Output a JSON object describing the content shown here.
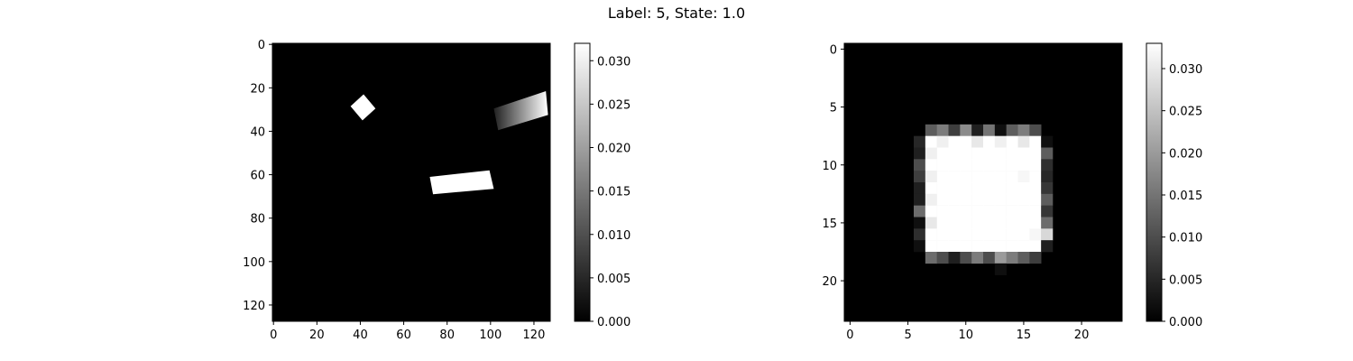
{
  "figure_title": "Label: 5, State: 1.0",
  "chart_data": [
    {
      "type": "heatmap",
      "title": "",
      "xlabel": "",
      "ylabel": "",
      "size": 128,
      "xlim": [
        0,
        128
      ],
      "ylim": [
        128,
        0
      ],
      "x_ticks": [
        0,
        20,
        40,
        60,
        80,
        100,
        120
      ],
      "y_ticks": [
        0,
        20,
        40,
        60,
        80,
        100,
        120
      ],
      "colormap": "gray",
      "background_value": 0.0,
      "colorbar": {
        "min": 0.0,
        "max": 0.032,
        "ticks": [
          "0.000",
          "0.005",
          "0.010",
          "0.015",
          "0.020",
          "0.025",
          "0.030"
        ]
      },
      "shapes": [
        {
          "name": "small-square",
          "kind": "polygon",
          "value": 0.032,
          "points": [
            [
              36,
              29
            ],
            [
              42,
              23.5
            ],
            [
              47.5,
              30
            ],
            [
              41.5,
              35.5
            ]
          ]
        },
        {
          "name": "wide-bar",
          "kind": "polygon",
          "value": 0.032,
          "points": [
            [
              72.5,
              61.5
            ],
            [
              100,
              58.5
            ],
            [
              102,
              67
            ],
            [
              74,
              69.5
            ]
          ]
        },
        {
          "name": "gradient-bar",
          "kind": "polygon",
          "value": 0.022,
          "gradient": [
            0.004,
            0.032
          ],
          "points": [
            [
              102,
              30
            ],
            [
              126,
              22
            ],
            [
              127,
              33
            ],
            [
              104,
              40
            ]
          ]
        }
      ]
    },
    {
      "type": "heatmap",
      "title": "",
      "xlabel": "",
      "ylabel": "",
      "size": 24,
      "xlim": [
        0,
        24
      ],
      "ylim": [
        24,
        0
      ],
      "x_ticks": [
        0,
        5,
        10,
        15,
        20
      ],
      "y_ticks": [
        0,
        5,
        10,
        15,
        20
      ],
      "colormap": "gray",
      "colorbar": {
        "min": 0.0,
        "max": 0.033,
        "ticks": [
          "0.000",
          "0.005",
          "0.010",
          "0.015",
          "0.020",
          "0.025",
          "0.030"
        ]
      },
      "grid_values": [
        [
          0,
          0,
          0,
          0,
          0,
          0,
          0,
          0,
          0,
          0,
          0,
          0,
          0,
          0,
          0,
          0,
          0,
          0,
          0,
          0,
          0,
          0,
          0,
          0
        ],
        [
          0,
          0,
          0,
          0,
          0,
          0,
          0,
          0,
          0,
          0,
          0,
          0,
          0,
          0,
          0,
          0,
          0,
          0,
          0,
          0,
          0,
          0,
          0,
          0
        ],
        [
          0,
          0,
          0,
          0,
          0,
          0,
          0,
          0,
          0,
          0,
          0,
          0,
          0,
          0,
          0,
          0,
          0,
          0,
          0,
          0,
          0,
          0,
          0,
          0
        ],
        [
          0,
          0,
          0,
          0,
          0,
          0,
          0,
          0,
          0,
          0,
          0,
          0,
          0,
          0,
          0,
          0,
          0,
          0,
          0,
          0,
          0,
          0,
          0,
          0
        ],
        [
          0,
          0,
          0,
          0,
          0,
          0,
          0,
          0,
          0,
          0,
          0,
          0,
          0,
          0,
          0,
          0,
          0,
          0,
          0,
          0,
          0,
          0,
          0,
          0
        ],
        [
          0,
          0,
          0,
          0,
          0,
          0,
          0,
          0,
          0,
          0,
          0,
          0,
          0,
          0,
          0,
          0,
          0,
          0,
          0,
          0,
          0,
          0,
          0,
          0
        ],
        [
          0,
          0,
          0,
          0,
          0,
          0,
          0,
          0,
          0,
          0,
          0,
          0,
          0,
          0,
          0,
          0,
          0,
          0,
          0,
          0,
          0,
          0,
          0,
          0
        ],
        [
          0,
          0,
          0,
          0,
          0,
          0,
          0,
          0.012,
          0.016,
          0.008,
          0.018,
          0.004,
          0.015,
          0.002,
          0.012,
          0.016,
          0.01,
          0,
          0,
          0,
          0,
          0,
          0,
          0
        ],
        [
          0,
          0,
          0,
          0,
          0,
          0,
          0.005,
          0.033,
          0.031,
          0.033,
          0.033,
          0.03,
          0.033,
          0.031,
          0.033,
          0.03,
          0.033,
          0.002,
          0,
          0,
          0,
          0,
          0,
          0
        ],
        [
          0,
          0,
          0,
          0,
          0,
          0,
          0.004,
          0.031,
          0.033,
          0.033,
          0.033,
          0.033,
          0.033,
          0.033,
          0.033,
          0.033,
          0.033,
          0.012,
          0,
          0,
          0,
          0,
          0,
          0
        ],
        [
          0,
          0,
          0,
          0,
          0,
          0,
          0.01,
          0.033,
          0.033,
          0.033,
          0.033,
          0.033,
          0.033,
          0.033,
          0.033,
          0.033,
          0.033,
          0.006,
          0,
          0,
          0,
          0,
          0,
          0
        ],
        [
          0,
          0,
          0,
          0,
          0,
          0,
          0.008,
          0.031,
          0.033,
          0.033,
          0.033,
          0.033,
          0.033,
          0.033,
          0.033,
          0.032,
          0.033,
          0.005,
          0,
          0,
          0,
          0,
          0,
          0
        ],
        [
          0,
          0,
          0,
          0,
          0,
          0,
          0.004,
          0.033,
          0.033,
          0.033,
          0.033,
          0.033,
          0.033,
          0.033,
          0.033,
          0.033,
          0.033,
          0.007,
          0,
          0,
          0,
          0,
          0,
          0
        ],
        [
          0,
          0,
          0,
          0,
          0,
          0,
          0.004,
          0.031,
          0.033,
          0.033,
          0.033,
          0.033,
          0.033,
          0.033,
          0.033,
          0.033,
          0.033,
          0.012,
          0,
          0,
          0,
          0,
          0,
          0
        ],
        [
          0,
          0,
          0,
          0,
          0,
          0,
          0.014,
          0.033,
          0.033,
          0.033,
          0.033,
          0.033,
          0.033,
          0.033,
          0.033,
          0.033,
          0.033,
          0.007,
          0,
          0,
          0,
          0,
          0,
          0
        ],
        [
          0,
          0,
          0,
          0,
          0,
          0,
          0.002,
          0.03,
          0.033,
          0.033,
          0.033,
          0.033,
          0.033,
          0.033,
          0.033,
          0.033,
          0.033,
          0.014,
          0,
          0,
          0,
          0,
          0,
          0
        ],
        [
          0,
          0,
          0,
          0,
          0,
          0,
          0.006,
          0.033,
          0.033,
          0.033,
          0.033,
          0.033,
          0.033,
          0.033,
          0.033,
          0.033,
          0.032,
          0.028,
          0,
          0,
          0,
          0,
          0,
          0
        ],
        [
          0,
          0,
          0,
          0,
          0,
          0,
          0.002,
          0.033,
          0.033,
          0.033,
          0.033,
          0.033,
          0.033,
          0.033,
          0.033,
          0.033,
          0.033,
          0.004,
          0,
          0,
          0,
          0,
          0,
          0
        ],
        [
          0,
          0,
          0,
          0,
          0,
          0,
          0,
          0.014,
          0.01,
          0.004,
          0.01,
          0.016,
          0.01,
          0.02,
          0.016,
          0.012,
          0.008,
          0,
          0,
          0,
          0,
          0,
          0,
          0
        ],
        [
          0,
          0,
          0,
          0,
          0,
          0,
          0,
          0,
          0,
          0,
          0,
          0,
          0,
          0.002,
          0,
          0,
          0,
          0,
          0,
          0,
          0,
          0,
          0,
          0
        ],
        [
          0,
          0,
          0,
          0,
          0,
          0,
          0,
          0,
          0,
          0,
          0,
          0,
          0,
          0,
          0,
          0,
          0,
          0,
          0,
          0,
          0,
          0,
          0,
          0
        ],
        [
          0,
          0,
          0,
          0,
          0,
          0,
          0,
          0,
          0,
          0,
          0,
          0,
          0,
          0,
          0,
          0,
          0,
          0,
          0,
          0,
          0,
          0,
          0,
          0
        ],
        [
          0,
          0,
          0,
          0,
          0,
          0,
          0,
          0,
          0,
          0,
          0,
          0,
          0,
          0,
          0,
          0,
          0,
          0,
          0,
          0,
          0,
          0,
          0,
          0
        ],
        [
          0,
          0,
          0,
          0,
          0,
          0,
          0,
          0,
          0,
          0,
          0,
          0,
          0,
          0,
          0,
          0,
          0,
          0,
          0,
          0,
          0,
          0,
          0,
          0
        ]
      ]
    }
  ]
}
